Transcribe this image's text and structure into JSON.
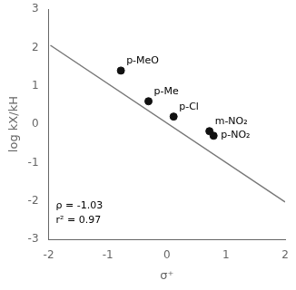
{
  "chart_data": {
    "type": "scatter",
    "xlabel": "σ⁺",
    "ylabel": "log kX/kH",
    "series": [
      {
        "type": "scatter",
        "color": "#111111",
        "marker": "circle",
        "x": [
          -0.778,
          -0.311,
          0.114,
          0.72,
          0.79
        ],
        "values": [
          1.4,
          0.6,
          0.2,
          -0.18,
          -0.3
        ],
        "labels": [
          "p-MeO",
          "p-Me",
          "p-Cl",
          "m-NO₂",
          "p-NO₂"
        ]
      },
      {
        "type": "line",
        "color": "#777777",
        "line_style": "solid",
        "x": [
          -1.97,
          2.0
        ],
        "values": [
          2.0591,
          -2.03
        ]
      }
    ],
    "annotations": [
      "ρ = -1.03",
      "r² = 0.97"
    ],
    "xlim": [
      -2,
      2
    ],
    "xticks": [
      -2,
      -1,
      0,
      1,
      2
    ],
    "ylim": [
      -3,
      3
    ],
    "yticks": [
      -3,
      -2,
      -1,
      0,
      1,
      2,
      3
    ],
    "grid": false,
    "text_color": "#000000"
  }
}
